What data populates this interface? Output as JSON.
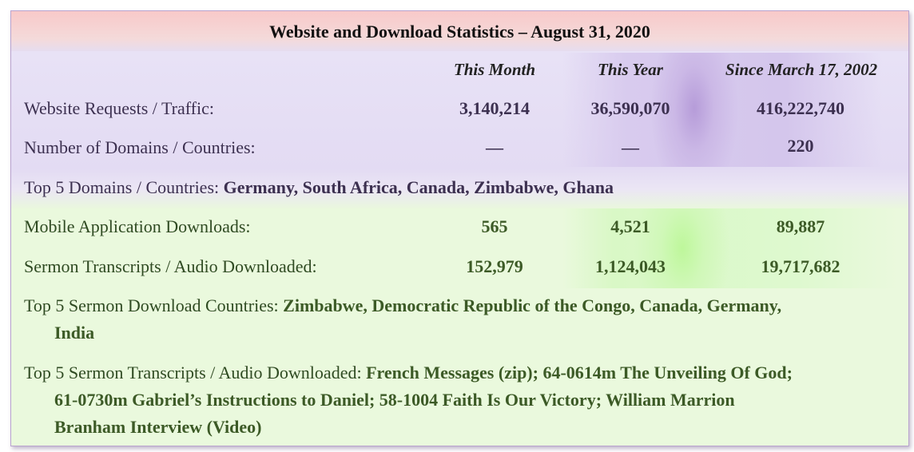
{
  "title": "Website and Download Statistics – August 31, 2020",
  "headers": {
    "this_month": "This Month",
    "this_year": "This Year",
    "since": "Since March 17, 2002"
  },
  "rows": {
    "website_requests": {
      "label": "Website Requests / Traffic:",
      "this_month": "3,140,214",
      "this_year": "36,590,070",
      "since": "416,222,740"
    },
    "domains": {
      "label": "Number of Domains / Countries:",
      "this_month": "—",
      "this_year": "—",
      "since": "220"
    },
    "mobile_downloads": {
      "label": "Mobile Application Downloads:",
      "this_month": "565",
      "this_year": "4,521",
      "since": "89,887"
    },
    "sermon_downloads": {
      "label": "Sermon Transcripts / Audio Downloaded:",
      "this_month": "152,979",
      "this_year": "1,124,043",
      "since": "19,717,682"
    }
  },
  "top_domains": {
    "label": "Top 5 Domains / Countries:",
    "value": "Germany, South Africa, Canada, Zimbabwe, Ghana"
  },
  "top_download_countries": {
    "label": "Top 5 Sermon Download Countries:",
    "value_line1": "Zimbabwe, Democratic Republic of the Congo, Canada, Germany,",
    "value_line2": "India"
  },
  "top_sermons": {
    "label": "Top 5 Sermon Transcripts / Audio Downloaded:",
    "value_line1": "French Messages (zip); 64-0614m The Unveiling Of God;",
    "value_line2": "61-0730m Gabriel’s Instructions to Daniel; 58-1004 Faith Is Our Victory; William Marrion",
    "value_line3": "Branham Interview (Video)"
  }
}
